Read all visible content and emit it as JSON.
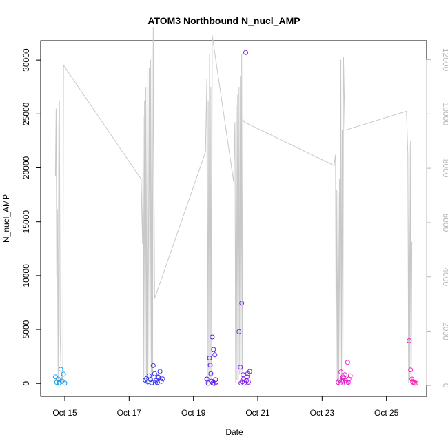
{
  "chart_data": {
    "type": "scatter",
    "title": "ATOM3 Northbound N_nucl_AMP",
    "xlabel": "Date",
    "ylabel": "N_nucl_AMP",
    "xlim": [
      "2025-10-14T06:00",
      "2025-10-26T06:00"
    ],
    "ylim_left": [
      -1200,
      31800
    ],
    "ylim_right": [
      -400,
      12700
    ],
    "x_ticks": [
      {
        "label": "Oct 15",
        "x": "2025-10-15T00:00"
      },
      {
        "label": "Oct 17",
        "x": "2025-10-17T00:00"
      },
      {
        "label": "Oct 19",
        "x": "2025-10-19T00:00"
      },
      {
        "label": "Oct 21",
        "x": "2025-10-21T00:00"
      },
      {
        "label": "Oct 23",
        "x": "2025-10-23T00:00"
      },
      {
        "label": "Oct 25",
        "x": "2025-10-25T00:00"
      }
    ],
    "y_ticks_left": [
      0,
      5000,
      10000,
      15000,
      20000,
      25000,
      30000
    ],
    "y_ticks_right": [
      0,
      2000,
      4000,
      6000,
      8000,
      10000,
      12000
    ],
    "grid": false,
    "marker": "open-circle",
    "point_color_gradient": [
      "#19b4e8",
      "#2050f0",
      "#4a18e8",
      "#a020e8",
      "#e820c8",
      "#ff20b0"
    ],
    "line_color": "#c8c8c8",
    "series": [
      {
        "axis": "left",
        "points": [
          [
            "2025-10-14T17:00",
            600
          ],
          [
            "2025-10-14T18:00",
            100
          ],
          [
            "2025-10-14T19:00",
            400
          ],
          [
            "2025-10-14T20:00",
            50
          ],
          [
            "2025-10-14T21:00",
            1300
          ],
          [
            "2025-10-14T22:00",
            200
          ],
          [
            "2025-10-14T23:00",
            850
          ],
          [
            "2025-10-15T00:00",
            30
          ],
          [
            "2025-10-14T19:30",
            20
          ],
          [
            "2025-10-17T12:00",
            300
          ],
          [
            "2025-10-17T13:00",
            450
          ],
          [
            "2025-10-17T14:00",
            150
          ],
          [
            "2025-10-17T15:00",
            700
          ],
          [
            "2025-10-17T16:00",
            350
          ],
          [
            "2025-10-17T17:00",
            60
          ],
          [
            "2025-10-17T18:00",
            1650
          ],
          [
            "2025-10-17T19:00",
            900
          ],
          [
            "2025-10-17T20:00",
            250
          ],
          [
            "2025-10-17T21:00",
            80
          ],
          [
            "2025-10-17T22:00",
            550
          ],
          [
            "2025-10-17T23:00",
            1100
          ],
          [
            "2025-10-18T00:00",
            200
          ],
          [
            "2025-10-18T01:00",
            420
          ],
          [
            "2025-10-17T19:30",
            40
          ],
          [
            "2025-10-17T21:30",
            600
          ],
          [
            "2025-10-19T10:00",
            400
          ],
          [
            "2025-10-19T11:00",
            20
          ],
          [
            "2025-10-19T12:00",
            2350
          ],
          [
            "2025-10-19T12:30",
            1700
          ],
          [
            "2025-10-19T13:00",
            900
          ],
          [
            "2025-10-19T13:30",
            200
          ],
          [
            "2025-10-19T14:00",
            4300
          ],
          [
            "2025-10-19T14:30",
            40
          ],
          [
            "2025-10-19T15:00",
            3150
          ],
          [
            "2025-10-19T16:00",
            2650
          ],
          [
            "2025-10-19T16:30",
            350
          ],
          [
            "2025-10-19T17:00",
            120
          ],
          [
            "2025-10-19T15:30",
            10
          ],
          [
            "2025-10-20T10:00",
            4800
          ],
          [
            "2025-10-20T11:00",
            1500
          ],
          [
            "2025-10-20T12:00",
            7450
          ],
          [
            "2025-10-20T13:00",
            800
          ],
          [
            "2025-10-20T14:00",
            30
          ],
          [
            "2025-10-20T15:00",
            30700
          ],
          [
            "2025-10-20T16:00",
            600
          ],
          [
            "2025-10-20T17:00",
            120
          ],
          [
            "2025-10-20T18:00",
            1100
          ],
          [
            "2025-10-20T11:30",
            30
          ],
          [
            "2025-10-20T13:30",
            400
          ],
          [
            "2025-10-20T15:30",
            250
          ],
          [
            "2025-10-20T16:30",
            900
          ],
          [
            "2025-10-20T12:30",
            150
          ],
          [
            "2025-10-23T12:00",
            100
          ],
          [
            "2025-10-23T13:00",
            300
          ],
          [
            "2025-10-23T14:00",
            1050
          ],
          [
            "2025-10-23T15:00",
            200
          ],
          [
            "2025-10-23T16:00",
            500
          ],
          [
            "2025-10-23T17:00",
            800
          ],
          [
            "2025-10-23T18:00",
            50
          ],
          [
            "2025-10-23T19:00",
            1950
          ],
          [
            "2025-10-23T20:00",
            400
          ],
          [
            "2025-10-23T21:00",
            700
          ],
          [
            "2025-10-23T13:30",
            30
          ],
          [
            "2025-10-23T15:30",
            600
          ],
          [
            "2025-10-23T17:30",
            250
          ],
          [
            "2025-10-23T19:30",
            100
          ],
          [
            "2025-10-25T17:00",
            3950
          ],
          [
            "2025-10-25T18:00",
            1250
          ],
          [
            "2025-10-25T19:00",
            400
          ],
          [
            "2025-10-25T20:00",
            100
          ],
          [
            "2025-10-25T21:00",
            50
          ],
          [
            "2025-10-25T22:00",
            20
          ],
          [
            "2025-10-25T19:30",
            200
          ]
        ]
      },
      {
        "axis": "right",
        "points": [
          [
            "2025-10-14T17:00",
            7700
          ],
          [
            "2025-10-14T17:30",
            10200
          ],
          [
            "2025-10-14T18:00",
            4000
          ],
          [
            "2025-10-14T18:30",
            6500
          ],
          [
            "2025-10-14T19:00",
            100
          ],
          [
            "2025-10-14T19:30",
            9600
          ],
          [
            "2025-10-14T20:00",
            10500
          ],
          [
            "2025-10-14T20:30",
            2000
          ],
          [
            "2025-10-14T21:00",
            800
          ],
          [
            "2025-10-14T21:30",
            50
          ],
          [
            "2025-10-14T22:00",
            400
          ],
          [
            "2025-10-14T22:30",
            100
          ],
          [
            "2025-10-14T23:00",
            11800
          ],
          [
            "2025-10-17T09:00",
            7600
          ],
          [
            "2025-10-17T10:00",
            5200
          ],
          [
            "2025-10-17T10:30",
            9900
          ],
          [
            "2025-10-17T11:00",
            300
          ],
          [
            "2025-10-17T11:30",
            10500
          ],
          [
            "2025-10-17T12:00",
            100
          ],
          [
            "2025-10-17T12:30",
            11000
          ],
          [
            "2025-10-17T13:00",
            200
          ],
          [
            "2025-10-17T13:30",
            11700
          ],
          [
            "2025-10-17T14:00",
            50
          ],
          [
            "2025-10-17T15:00",
            11700
          ],
          [
            "2025-10-17T15:30",
            100
          ],
          [
            "2025-10-17T16:00",
            12000
          ],
          [
            "2025-10-17T16:30",
            200
          ],
          [
            "2025-10-17T17:00",
            12200
          ],
          [
            "2025-10-17T17:30",
            300
          ],
          [
            "2025-10-17T18:00",
            13200
          ],
          [
            "2025-10-17T19:00",
            3200
          ],
          [
            "2025-10-19T09:00",
            8600
          ],
          [
            "2025-10-19T10:00",
            11300
          ],
          [
            "2025-10-19T10:30",
            50
          ],
          [
            "2025-10-19T11:00",
            10500
          ],
          [
            "2025-10-19T11:30",
            200
          ],
          [
            "2025-10-19T12:00",
            12200
          ],
          [
            "2025-10-19T12:30",
            100
          ],
          [
            "2025-10-19T13:00",
            11000
          ],
          [
            "2025-10-19T13:30",
            300
          ],
          [
            "2025-10-19T14:00",
            12900
          ],
          [
            "2025-10-20T06:00",
            7500
          ],
          [
            "2025-10-20T07:00",
            9700
          ],
          [
            "2025-10-20T07:30",
            100
          ],
          [
            "2025-10-20T08:00",
            10300
          ],
          [
            "2025-10-20T08:30",
            200
          ],
          [
            "2025-10-20T09:00",
            10700
          ],
          [
            "2025-10-20T09:30",
            50
          ],
          [
            "2025-10-20T10:00",
            11000
          ],
          [
            "2025-10-20T10:30",
            400
          ],
          [
            "2025-10-20T11:00",
            11400
          ],
          [
            "2025-10-20T11:30",
            300
          ],
          [
            "2025-10-20T12:00",
            12200
          ],
          [
            "2025-10-20T12:30",
            500
          ],
          [
            "2025-10-20T13:00",
            9800
          ],
          [
            "2025-10-20T14:00",
            9700
          ],
          [
            "2025-10-23T09:00",
            8100
          ],
          [
            "2025-10-23T10:00",
            8500
          ],
          [
            "2025-10-23T10:30",
            100
          ],
          [
            "2025-10-23T11:00",
            7200
          ],
          [
            "2025-10-23T11:30",
            200
          ],
          [
            "2025-10-23T12:00",
            7100
          ],
          [
            "2025-10-23T12:30",
            50
          ],
          [
            "2025-10-23T13:00",
            7600
          ],
          [
            "2025-10-23T13:30",
            300
          ],
          [
            "2025-10-23T14:00",
            12000
          ],
          [
            "2025-10-23T14:30",
            100
          ],
          [
            "2025-10-23T15:00",
            9400
          ],
          [
            "2025-10-23T15:30",
            400
          ],
          [
            "2025-10-23T16:00",
            12100
          ],
          [
            "2025-10-23T17:00",
            9400
          ],
          [
            "2025-10-25T15:00",
            10100
          ],
          [
            "2025-10-25T16:00",
            8500
          ],
          [
            "2025-10-25T16:30",
            100
          ],
          [
            "2025-10-25T17:00",
            8900
          ],
          [
            "2025-10-25T17:30",
            200
          ],
          [
            "2025-10-25T18:00",
            9000
          ],
          [
            "2025-10-25T18:30",
            50
          ],
          [
            "2025-10-25T19:00",
            5300
          ]
        ]
      }
    ]
  }
}
